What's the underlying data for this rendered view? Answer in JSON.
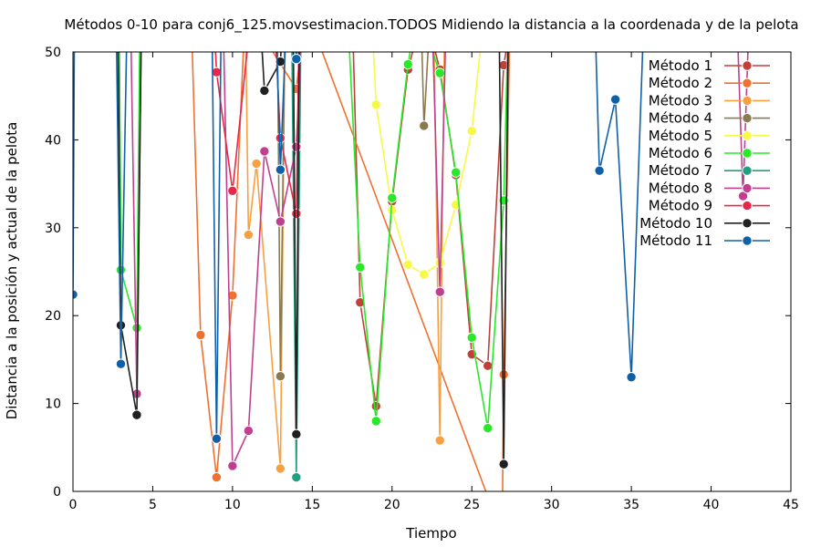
{
  "chart_data": {
    "type": "line",
    "title": "Métodos 0-10 para conj6_125.movsestimacion.TODOS Midiendo la distancia a la coordenada y de la pelota",
    "xlabel": "Tiempo",
    "ylabel": "Distancia a la posición y actual de la pelota",
    "xlim": [
      0,
      45
    ],
    "ylim": [
      0,
      50
    ],
    "xticks": [
      "0",
      "5",
      "10",
      "15",
      "20",
      "25",
      "30",
      "35",
      "40",
      "45"
    ],
    "yticks": [
      "0",
      "10",
      "20",
      "30",
      "40",
      "50"
    ],
    "grid": false,
    "legend_position": "top-right",
    "series": [
      {
        "name": "Método 1",
        "color": "#c0403a",
        "x": [
          17.5,
          18,
          19,
          20,
          21,
          22,
          23,
          24,
          25,
          26,
          27,
          27.6
        ],
        "y": [
          55,
          21.5,
          9.7,
          33,
          48,
          55,
          48,
          36,
          15.6,
          14.3,
          48.5,
          55
        ]
      },
      {
        "name": "Método 2",
        "color": "#f07030",
        "x": [
          7.4,
          8,
          9,
          10,
          10.8,
          14,
          14.6,
          26.9,
          27,
          27.4
        ],
        "y": [
          55,
          17.8,
          1.6,
          22.3,
          55,
          45.8,
          55,
          -5,
          13.3,
          55
        ]
      },
      {
        "name": "Método 3",
        "color": "#f8a040",
        "x": [
          10.8,
          11,
          11.5,
          13,
          13.3,
          22.6,
          23,
          23.3
        ],
        "y": [
          55,
          29.2,
          37.3,
          2.6,
          55,
          55,
          5.8,
          55
        ]
      },
      {
        "name": "Método 4",
        "color": "#8a7a50",
        "x": [
          12.8,
          13,
          13.3,
          21.8,
          22,
          22.4
        ],
        "y": [
          55,
          13.1,
          55,
          55,
          41.6,
          55
        ]
      },
      {
        "name": "Método 5",
        "color": "#f8f848",
        "x": [
          18.7,
          19,
          20,
          21,
          22,
          23,
          24,
          25,
          25.8
        ],
        "y": [
          55,
          44,
          32,
          25.8,
          24.7,
          26,
          32.6,
          41,
          55
        ]
      },
      {
        "name": "Método 6",
        "color": "#28e828",
        "x": [
          2.9,
          3,
          4,
          4.2,
          17.2,
          18,
          19,
          20,
          21,
          21.6,
          23,
          24,
          25,
          26,
          27,
          27.3
        ],
        "y": [
          55,
          25.2,
          18.6,
          55,
          55,
          25.5,
          8,
          33.4,
          48.6,
          55,
          47.6,
          36.3,
          17.5,
          7.2,
          33.1,
          55
        ]
      },
      {
        "name": "Método 7",
        "color": "#20a080",
        "x": [
          13.7,
          14,
          14.3
        ],
        "y": [
          55,
          1.6,
          55
        ]
      },
      {
        "name": "Método 8",
        "color": "#c04090",
        "x": [
          3.6,
          4,
          4.3,
          9.4,
          10,
          11,
          12,
          13,
          14,
          14.4,
          22.5,
          23,
          23.4,
          41.6,
          42,
          42.4
        ],
        "y": [
          55,
          11.1,
          55,
          55,
          2.9,
          6.9,
          38.7,
          30.7,
          39.2,
          55,
          55,
          22.7,
          55,
          55,
          33.6,
          55
        ]
      },
      {
        "name": "Método 9",
        "color": "#e82848",
        "x": [
          8.8,
          9,
          10,
          11.2,
          12.6,
          13,
          14,
          14.2
        ],
        "y": [
          55,
          47.7,
          34.2,
          55,
          55,
          40.2,
          31.6,
          55
        ]
      },
      {
        "name": "Método 10",
        "color": "#202020",
        "x": [
          2.8,
          3,
          4,
          4.3,
          11.7,
          12,
          13,
          13.2,
          13.8,
          14,
          14.2,
          26.7,
          27,
          27.3
        ],
        "y": [
          55,
          18.9,
          8.7,
          55,
          55,
          45.6,
          48.9,
          55,
          55,
          6.5,
          55,
          55,
          3.1,
          55
        ]
      },
      {
        "name": "Método 11",
        "color": "#1060a8",
        "x": [
          0,
          0.1,
          2.7,
          3,
          3.4,
          8.7,
          9,
          9.3,
          12.7,
          13,
          13.4,
          13.8,
          14,
          14.3,
          32.7,
          33,
          34,
          35,
          35.8
        ],
        "y": [
          22.4,
          55,
          55,
          14.5,
          55,
          55,
          6,
          55,
          55,
          36.6,
          55,
          55,
          49.2,
          55,
          55,
          36.5,
          44.6,
          13,
          55
        ]
      }
    ]
  }
}
